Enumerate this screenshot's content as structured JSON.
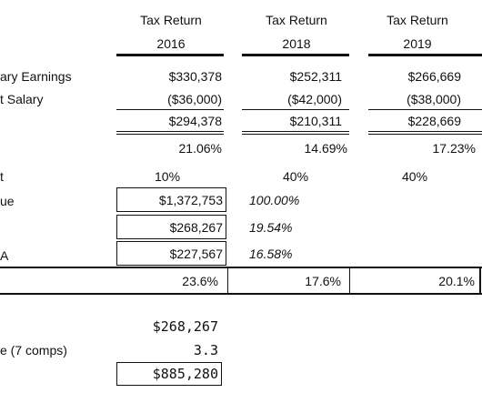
{
  "columns": [
    {
      "line1": "Tax Return",
      "line2": "2016"
    },
    {
      "line1": "Tax Return",
      "line2": "2018"
    },
    {
      "line1": "Tax Return",
      "line2": "2019"
    }
  ],
  "labels": {
    "earnings": "ary Earnings",
    "salary": "t Salary",
    "pct_label": "t",
    "value_label": "ue",
    "a_label": "A",
    "comps_label": "e (7 comps)"
  },
  "rows": {
    "earnings": [
      "$330,378",
      "$252,311",
      "$266,669"
    ],
    "salary": [
      "($36,000)",
      "($42,000)",
      "($38,000)"
    ],
    "subtotal": [
      "$294,378",
      "$210,311",
      "$228,669"
    ],
    "margin": [
      "21.06%",
      "14.69%",
      "17.23%"
    ],
    "pct": [
      "10%",
      "40%",
      "40%"
    ],
    "summary": [
      "23.6%",
      "17.6%",
      "20.1%"
    ]
  },
  "boxed": [
    {
      "value": "$1,372,753",
      "pct": "100.00%"
    },
    {
      "value": "$268,267",
      "pct": "19.54%"
    },
    {
      "value": "$227,567",
      "pct": "16.58%"
    }
  ],
  "valuation": {
    "base": "$268,267",
    "multiple": "3.3",
    "result": "$885,280"
  }
}
